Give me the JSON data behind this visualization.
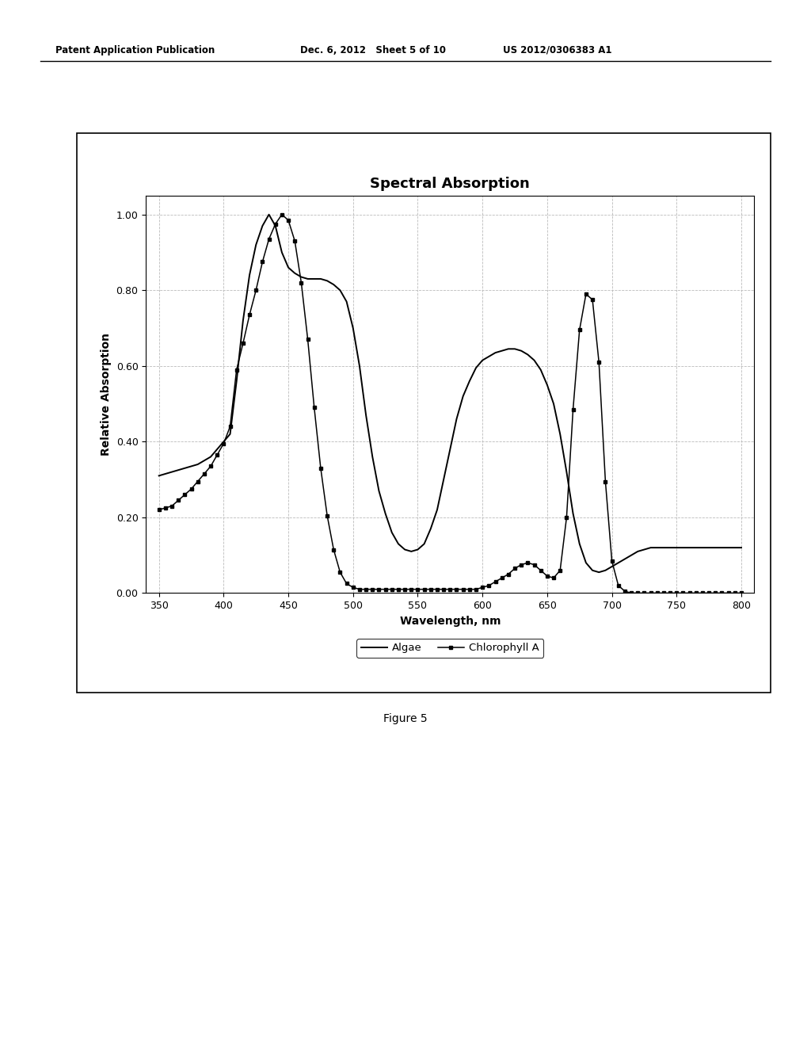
{
  "title": "Spectral Absorption",
  "xlabel": "Wavelength, nm",
  "ylabel": "Relative Absorption",
  "xlim": [
    340,
    810
  ],
  "ylim": [
    0.0,
    1.05
  ],
  "xticks": [
    350,
    400,
    450,
    500,
    550,
    600,
    650,
    700,
    750,
    800
  ],
  "yticks": [
    0.0,
    0.2,
    0.4,
    0.6,
    0.8,
    1.0
  ],
  "legend_labels": [
    "Algae",
    "Chlorophyll A"
  ],
  "background_color": "#ffffff",
  "header_left": "Patent Application Publication",
  "header_mid": "Dec. 6, 2012   Sheet 5 of 10",
  "header_right": "US 2012/0306383 A1",
  "figure_label": "Figure 5",
  "algae_x": [
    350,
    355,
    360,
    365,
    370,
    375,
    380,
    385,
    390,
    395,
    400,
    405,
    410,
    415,
    420,
    425,
    430,
    435,
    440,
    445,
    450,
    455,
    460,
    465,
    470,
    475,
    480,
    485,
    490,
    495,
    500,
    505,
    510,
    515,
    520,
    525,
    530,
    535,
    540,
    545,
    550,
    555,
    560,
    565,
    570,
    575,
    580,
    585,
    590,
    595,
    600,
    605,
    610,
    615,
    620,
    625,
    630,
    635,
    640,
    645,
    650,
    655,
    660,
    665,
    670,
    675,
    680,
    685,
    690,
    695,
    700,
    705,
    710,
    715,
    720,
    725,
    730,
    735,
    740,
    745,
    750,
    755,
    760,
    765,
    770,
    775,
    780,
    785,
    790,
    795,
    800
  ],
  "algae_y": [
    0.31,
    0.315,
    0.32,
    0.325,
    0.33,
    0.335,
    0.34,
    0.35,
    0.36,
    0.38,
    0.4,
    0.42,
    0.56,
    0.72,
    0.84,
    0.92,
    0.97,
    1.0,
    0.97,
    0.9,
    0.86,
    0.845,
    0.835,
    0.83,
    0.83,
    0.83,
    0.825,
    0.815,
    0.8,
    0.77,
    0.7,
    0.6,
    0.47,
    0.36,
    0.27,
    0.21,
    0.16,
    0.13,
    0.115,
    0.11,
    0.115,
    0.13,
    0.17,
    0.22,
    0.3,
    0.38,
    0.46,
    0.52,
    0.56,
    0.595,
    0.615,
    0.625,
    0.635,
    0.64,
    0.645,
    0.645,
    0.64,
    0.63,
    0.615,
    0.59,
    0.55,
    0.5,
    0.42,
    0.32,
    0.21,
    0.13,
    0.08,
    0.06,
    0.055,
    0.06,
    0.07,
    0.08,
    0.09,
    0.1,
    0.11,
    0.115,
    0.12,
    0.12,
    0.12,
    0.12,
    0.12,
    0.12,
    0.12,
    0.12,
    0.12,
    0.12,
    0.12,
    0.12,
    0.12,
    0.12,
    0.12
  ],
  "chl_x": [
    350,
    355,
    360,
    365,
    370,
    375,
    380,
    385,
    390,
    395,
    400,
    405,
    410,
    415,
    420,
    425,
    430,
    435,
    440,
    445,
    450,
    455,
    460,
    465,
    470,
    475,
    480,
    485,
    490,
    495,
    500,
    505,
    510,
    515,
    520,
    525,
    530,
    535,
    540,
    545,
    550,
    555,
    560,
    565,
    570,
    575,
    580,
    585,
    590,
    595,
    600,
    605,
    610,
    615,
    620,
    625,
    630,
    635,
    640,
    645,
    650,
    655,
    660,
    665,
    670,
    675,
    680,
    685,
    690,
    695,
    700,
    705,
    710,
    715,
    720,
    725,
    730,
    735,
    740,
    745,
    750,
    755,
    760,
    765,
    770,
    775,
    780,
    785,
    790,
    795,
    800
  ],
  "chl_y": [
    0.22,
    0.225,
    0.23,
    0.245,
    0.26,
    0.275,
    0.295,
    0.315,
    0.335,
    0.365,
    0.395,
    0.44,
    0.59,
    0.66,
    0.735,
    0.8,
    0.875,
    0.935,
    0.975,
    1.0,
    0.985,
    0.93,
    0.82,
    0.67,
    0.49,
    0.33,
    0.205,
    0.115,
    0.055,
    0.025,
    0.015,
    0.01,
    0.01,
    0.01,
    0.01,
    0.01,
    0.01,
    0.01,
    0.01,
    0.01,
    0.01,
    0.01,
    0.01,
    0.01,
    0.01,
    0.01,
    0.01,
    0.01,
    0.01,
    0.01,
    0.015,
    0.02,
    0.03,
    0.04,
    0.05,
    0.065,
    0.075,
    0.08,
    0.075,
    0.06,
    0.045,
    0.04,
    0.06,
    0.2,
    0.485,
    0.695,
    0.79,
    0.775,
    0.61,
    0.295,
    0.085,
    0.02,
    0.005,
    0.0,
    0.0,
    0.0,
    0.0,
    0.0,
    0.0,
    0.0,
    0.0,
    0.0,
    0.0,
    0.0,
    0.0,
    0.0,
    0.0,
    0.0,
    0.0,
    0.0,
    0.0
  ]
}
